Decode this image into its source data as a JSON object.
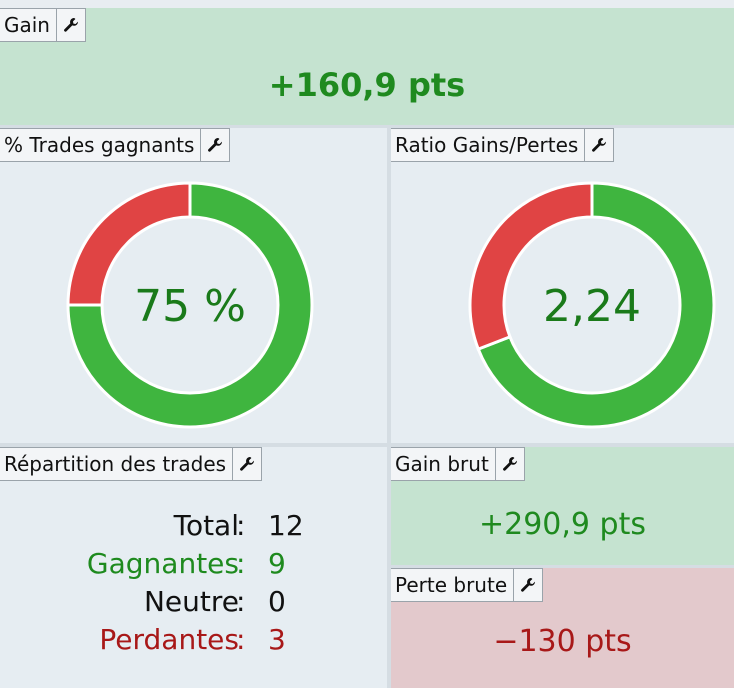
{
  "panels": {
    "gain": {
      "title": "Gain",
      "value": "+160,9 pts"
    },
    "win_rate": {
      "title": "% Trades gagnants",
      "center_label": "75 %",
      "segments": [
        {
          "color": "#3fb53f",
          "value": 75
        },
        {
          "color": "#e04444",
          "value": 25
        }
      ]
    },
    "ratio": {
      "title": "Ratio Gains/Pertes",
      "center_label": "2,24",
      "segments": [
        {
          "color": "#3fb53f",
          "value": 290.9
        },
        {
          "color": "#e04444",
          "value": 130
        }
      ]
    },
    "repartition": {
      "title": "Répartition des trades",
      "separator": ":",
      "rows": [
        {
          "label": "Total",
          "value": "12",
          "color": "#111111"
        },
        {
          "label": "Gagnantes",
          "value": "9",
          "color": "#1e8a1e"
        },
        {
          "label": "Neutre",
          "value": "0",
          "color": "#111111"
        },
        {
          "label": "Perdantes",
          "value": "3",
          "color": "#a81818"
        }
      ]
    },
    "gain_brut": {
      "title": "Gain brut",
      "value": "+290,9 pts"
    },
    "perte_brute": {
      "title": "Perte brute",
      "value": "−130 pts"
    }
  }
}
